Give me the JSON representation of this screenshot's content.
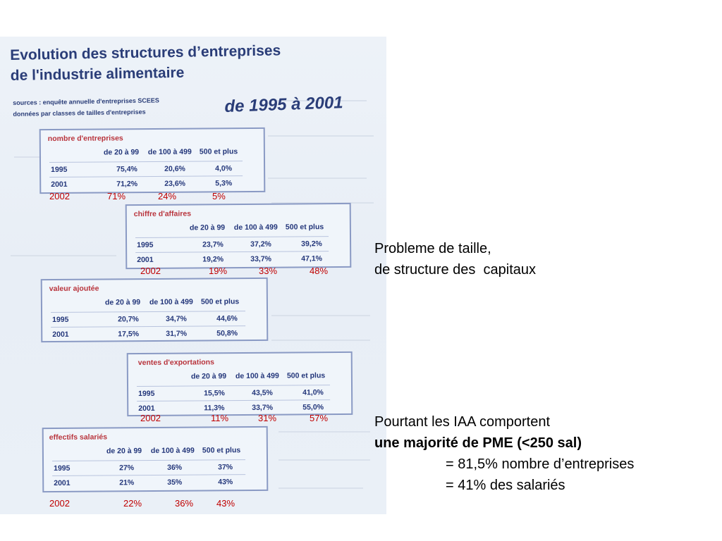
{
  "document": {
    "title_line1": "Evolution des structures d’entreprises",
    "title_line2": "de l'industrie alimentaire",
    "source_line1": "sources : enquête annuelle d'entreprises SCEES",
    "source_line2": "données par classes de tailles d'entreprises",
    "period": "de 1995 à 2001",
    "column_headers": [
      "de 20 à 99",
      "de 100 à 499",
      "500 et plus"
    ],
    "tables": [
      {
        "title": "nombre d'entreprises",
        "rows": [
          {
            "year": "1995",
            "values": [
              "75,4%",
              "20,6%",
              "4,0%"
            ]
          },
          {
            "year": "2001",
            "values": [
              "71,2%",
              "23,6%",
              "5,3%"
            ]
          }
        ]
      },
      {
        "title": "chiffre d'affaires",
        "rows": [
          {
            "year": "1995",
            "values": [
              "23,7%",
              "37,2%",
              "39,2%"
            ]
          },
          {
            "year": "2001",
            "values": [
              "19,2%",
              "33,7%",
              "47,1%"
            ]
          }
        ]
      },
      {
        "title": "valeur ajoutée",
        "rows": [
          {
            "year": "1995",
            "values": [
              "20,7%",
              "34,7%",
              "44,6%"
            ]
          },
          {
            "year": "2001",
            "values": [
              "17,5%",
              "31,7%",
              "50,8%"
            ]
          }
        ]
      },
      {
        "title": "ventes d'exportations",
        "rows": [
          {
            "year": "1995",
            "values": [
              "15,5%",
              "43,5%",
              "41,0%"
            ]
          },
          {
            "year": "2001",
            "values": [
              "11,3%",
              "33,7%",
              "55,0%"
            ]
          }
        ]
      },
      {
        "title": "effectifs salariés",
        "rows": [
          {
            "year": "1995",
            "values": [
              "27%",
              "36%",
              "37%"
            ]
          },
          {
            "year": "2001",
            "values": [
              "21%",
              "35%",
              "43%"
            ]
          }
        ]
      }
    ]
  },
  "annotations_2002": [
    {
      "year": "2002",
      "values": [
        "71%",
        "24%",
        "5%"
      ]
    },
    {
      "year": "2002",
      "values": [
        "19%",
        "33%",
        "48%"
      ]
    },
    {
      "year": "2002",
      "values": [
        "11%",
        "31%",
        "57%"
      ]
    },
    {
      "year": "2002",
      "values": [
        "22%",
        "36%",
        "43%"
      ]
    }
  ],
  "notes": {
    "problem_line1": "Probleme de taille,",
    "problem_line2": "de structure des  capitaux",
    "however_line1": "Pourtant les IAA comportent",
    "however_line2": "une majorité de PME (<250 sal)",
    "however_line3": "= 81,5% nombre d’entreprises",
    "however_line4": "= 41% des salariés"
  },
  "colors": {
    "doc_title": "#2a3d78",
    "table_title": "#b8333b",
    "annotation": "#c00000",
    "box_border": "#8a9ac4",
    "scan_background": "#edf2f8"
  }
}
